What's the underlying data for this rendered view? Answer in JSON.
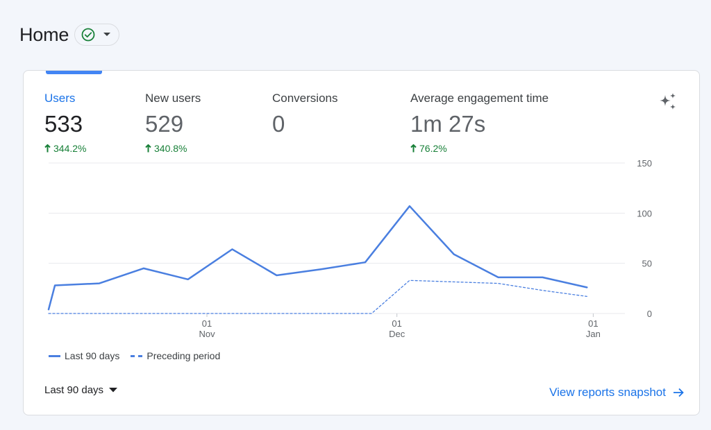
{
  "header": {
    "title": "Home",
    "status_icon": "check-circle-icon",
    "dropdown_icon": "caret-down-icon",
    "status_color": "#188038"
  },
  "metrics": [
    {
      "label": "Users",
      "value": "533",
      "change": "344.2%",
      "active": true
    },
    {
      "label": "New users",
      "value": "529",
      "change": "340.8%",
      "active": false
    },
    {
      "label": "Conversions",
      "value": "0",
      "change": "",
      "active": false
    },
    {
      "label": "Average engagement time",
      "value": "1m 27s",
      "change": "76.2%",
      "active": false
    }
  ],
  "insights_icon": "sparkle-icon",
  "chart_data": {
    "type": "line",
    "title": "",
    "xlabel": "",
    "ylabel": "",
    "ylim": [
      0,
      150
    ],
    "yticks": [
      0,
      50,
      100,
      150
    ],
    "y_axis_position": "right",
    "grid": true,
    "xlim": [
      -25,
      66
    ],
    "x_ticks": [
      {
        "x": 0,
        "label_top": "01",
        "label_bottom": "Nov"
      },
      {
        "x": 30,
        "label_top": "01",
        "label_bottom": "Dec"
      },
      {
        "x": 61,
        "label_top": "01",
        "label_bottom": "Jan"
      }
    ],
    "series": [
      {
        "name": "Last 90 days",
        "style": "solid",
        "color": "#4a7fe0",
        "points": [
          [
            -25,
            4
          ],
          [
            -24,
            28
          ],
          [
            -17,
            30
          ],
          [
            -10,
            45
          ],
          [
            -3,
            34
          ],
          [
            4,
            64
          ],
          [
            11,
            38
          ],
          [
            18,
            44
          ],
          [
            25,
            51
          ],
          [
            32,
            107
          ],
          [
            39,
            59
          ],
          [
            46,
            36
          ],
          [
            53,
            36
          ],
          [
            60,
            26
          ]
        ]
      },
      {
        "name": "Preceding period",
        "style": "dashed",
        "color": "#4a7fe0",
        "points": [
          [
            -25,
            0
          ],
          [
            26,
            0
          ],
          [
            32,
            33
          ],
          [
            46,
            30
          ],
          [
            53,
            23
          ],
          [
            60,
            17
          ]
        ]
      }
    ],
    "legend": "bottom-left"
  },
  "footer": {
    "date_range": "Last 90 days",
    "date_range_icon": "caret-down-icon",
    "link_label": "View reports snapshot",
    "link_icon": "arrow-right-icon"
  },
  "colors": {
    "accent": "#1a73e8",
    "positive": "#188038",
    "line": "#4a7fe0"
  }
}
